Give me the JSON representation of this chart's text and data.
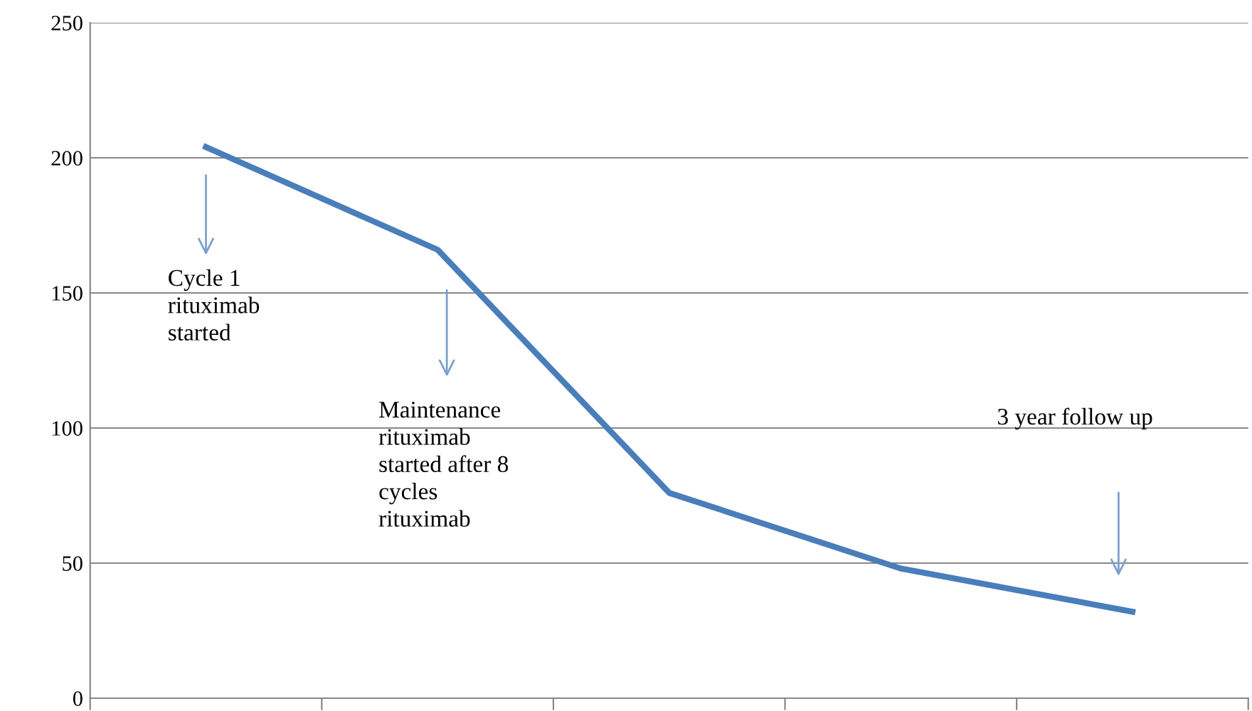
{
  "chart_data": {
    "type": "line",
    "categories": [
      null,
      null,
      null,
      null,
      null
    ],
    "series": [
      {
        "color": "#4a7ebb",
        "values": [
          204,
          166,
          76,
          48,
          32
        ]
      }
    ],
    "ylim": [
      0,
      250
    ],
    "yticks": [
      0,
      50,
      100,
      150,
      200,
      250
    ],
    "grid": "y",
    "marker": "none",
    "line_style": "solid",
    "tick_labels": "y",
    "annotations": [
      "Cycle 1\nrituximab\nstarted",
      "Maintenance\nrituximab\nstarted after 8\ncycles\nrituximab",
      "3 year follow up"
    ]
  }
}
